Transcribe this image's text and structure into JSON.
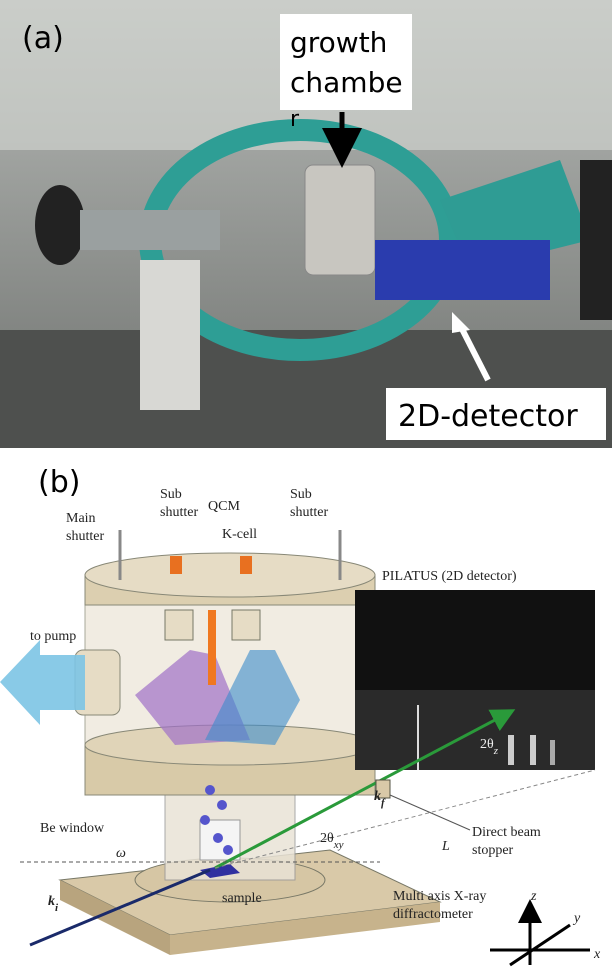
{
  "panel_a": {
    "label": "(a)",
    "chamber_callout": [
      "growth",
      "chambe",
      "r"
    ],
    "detector_callout": "2D-detector"
  },
  "panel_b": {
    "label": "(b)",
    "main_shutter": [
      "Main",
      "shutter"
    ],
    "sub_shutter_left": [
      "Sub",
      "shutter"
    ],
    "sub_shutter_right": [
      "Sub",
      "shutter"
    ],
    "qcm": "QCM",
    "k_cell": "K-cell",
    "to_pump": "to pump",
    "pilatus": "PILATUS (2D detector)",
    "be_window": "Be window",
    "sample": "sample",
    "beam_stopper": [
      "Direct beam",
      "stopper"
    ],
    "diffractometer": [
      "Multi axis X-ray",
      "diffractometer"
    ],
    "k_f": {
      "base": "k",
      "sub": "f"
    },
    "k_i": {
      "base": "k",
      "sub": "i"
    },
    "two_theta_xy": {
      "base": "2θ",
      "sub": "xy"
    },
    "two_theta_z": {
      "base": "2θ",
      "sub": "z"
    },
    "L": "L",
    "omega": "ω",
    "axes": {
      "z": "z",
      "y": "y",
      "x": "x"
    }
  }
}
